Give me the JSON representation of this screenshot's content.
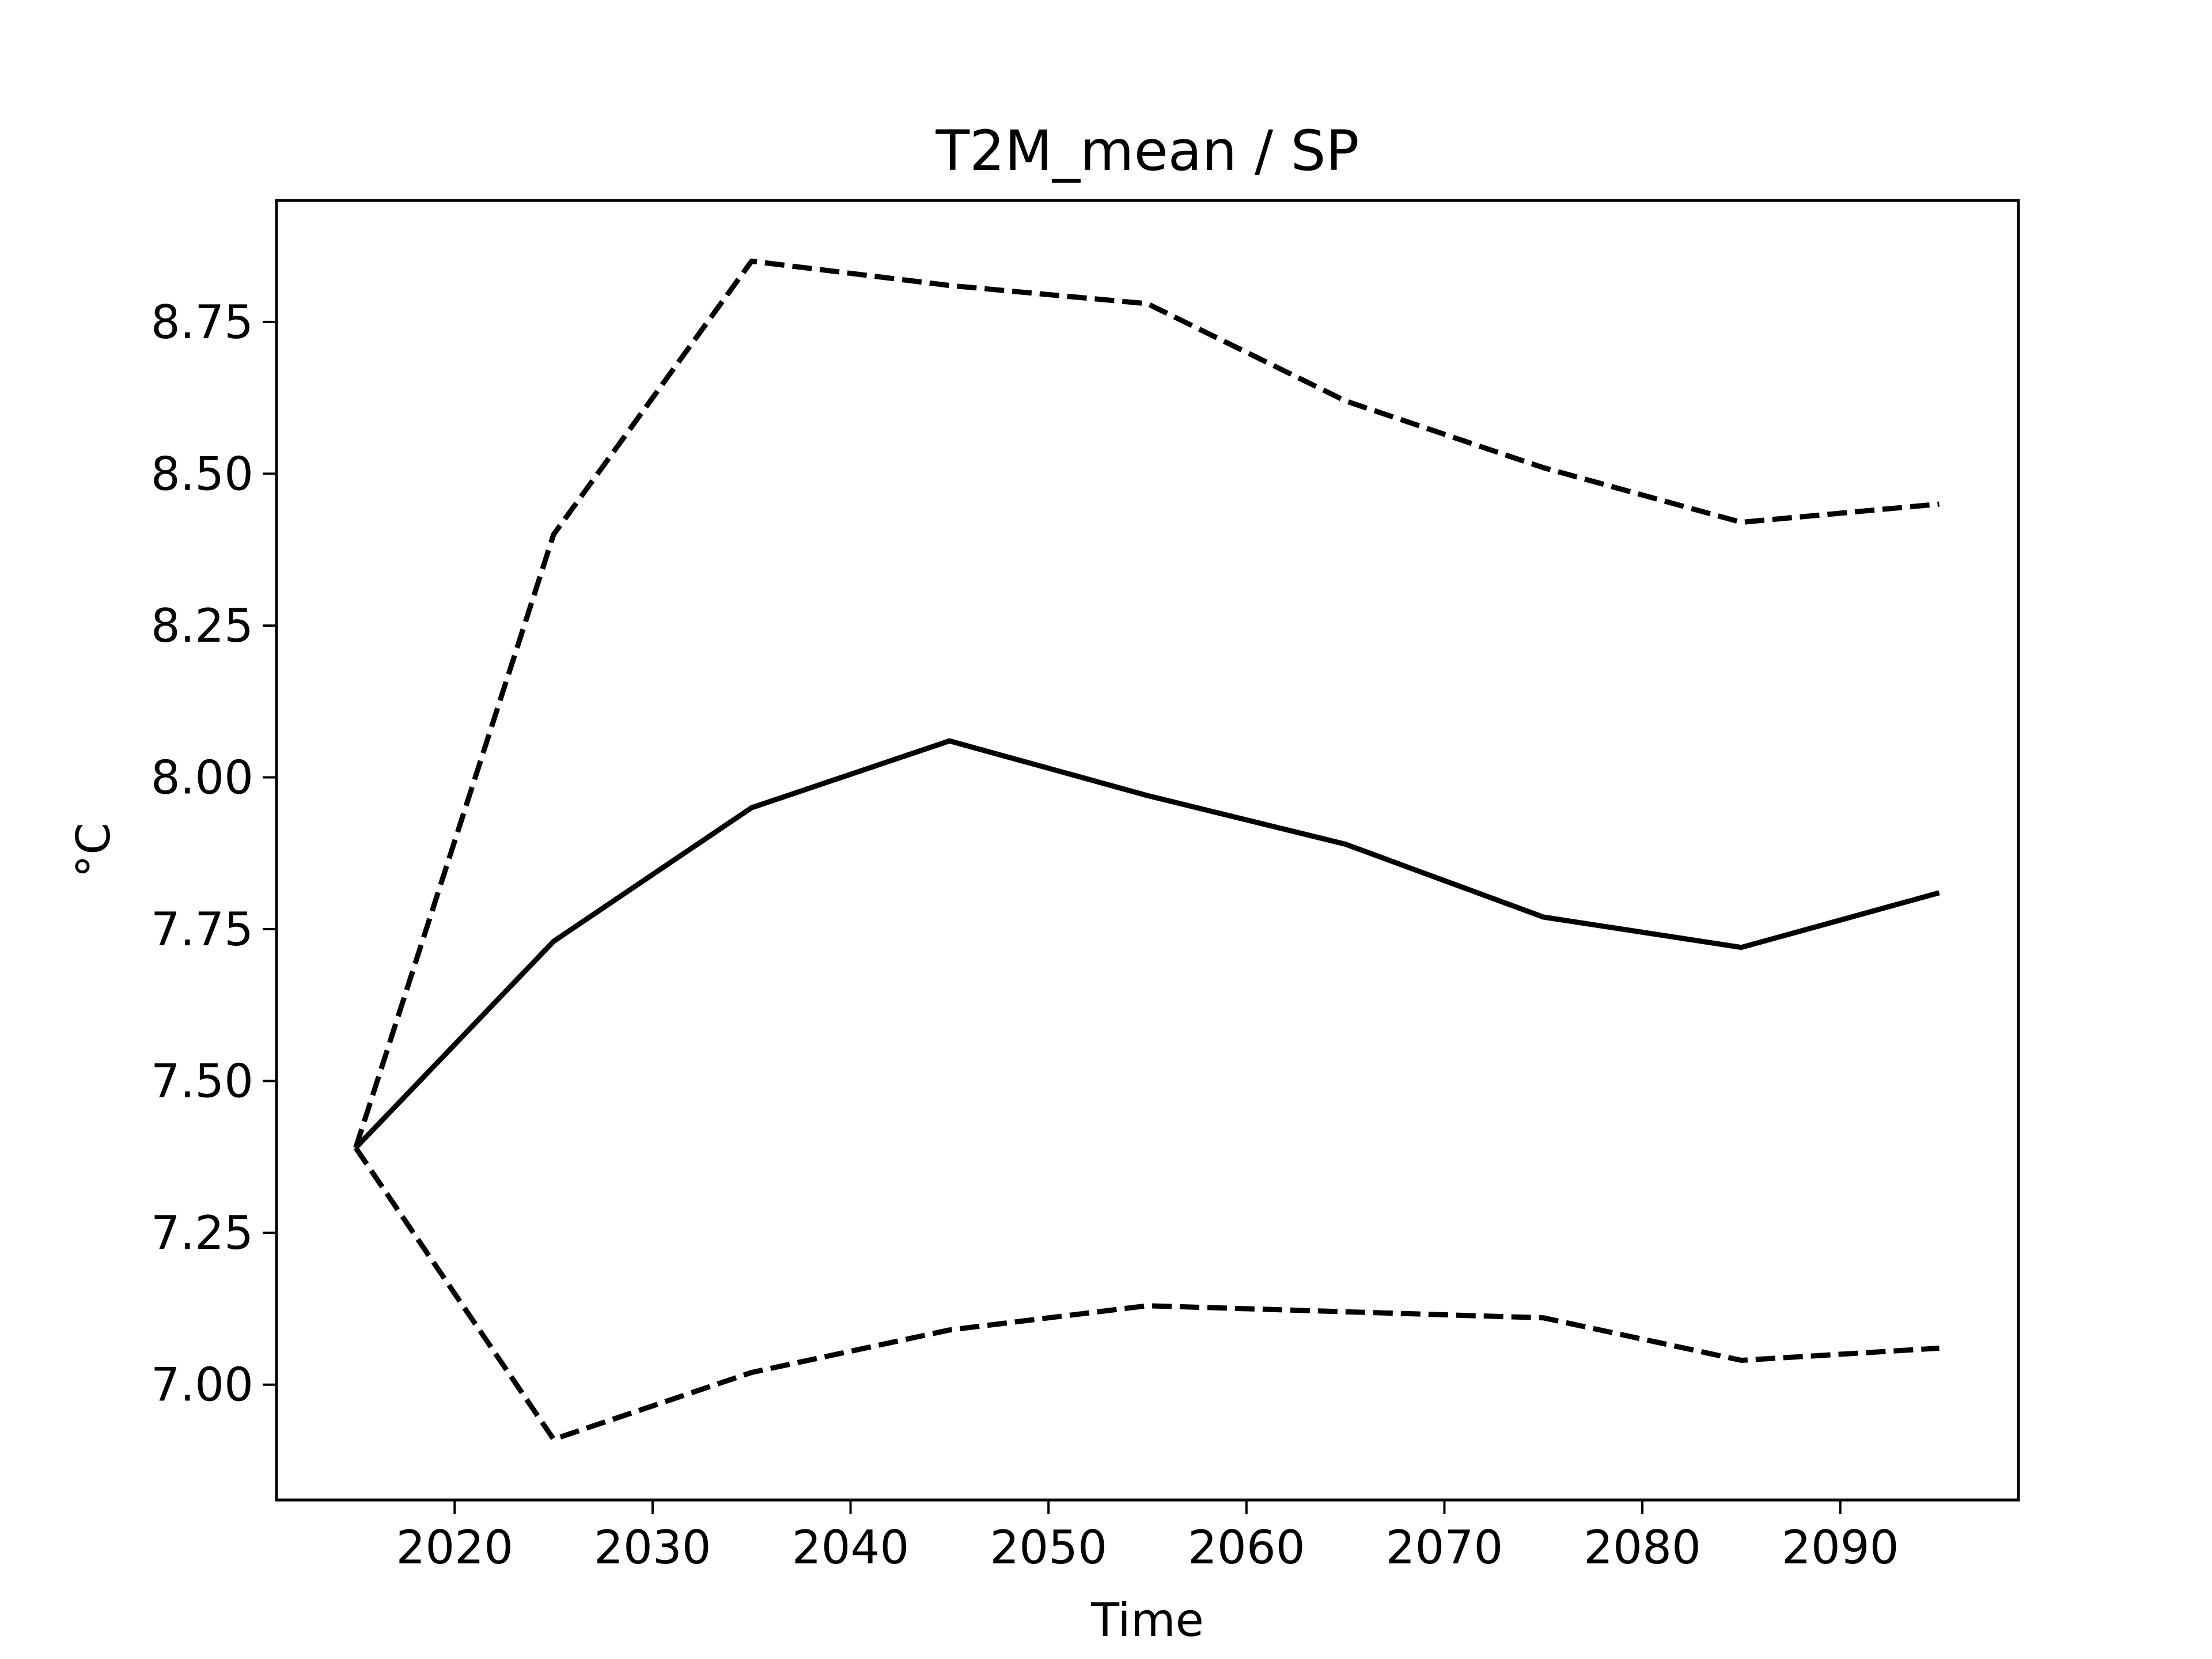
{
  "chart_data": {
    "type": "line",
    "title": "T2M_mean / SP",
    "xlabel": "Time",
    "ylabel": "°C",
    "x": [
      2015,
      2025,
      2035,
      2045,
      2055,
      2065,
      2075,
      2085,
      2095
    ],
    "xlim": [
      2011,
      2099
    ],
    "ylim": [
      6.81,
      8.95
    ],
    "xticks": [
      2020,
      2030,
      2040,
      2050,
      2060,
      2070,
      2080,
      2090
    ],
    "yticks": [
      7.0,
      7.25,
      7.5,
      7.75,
      8.0,
      8.25,
      8.5,
      8.75
    ],
    "ytick_labels": [
      "7.00",
      "7.25",
      "7.50",
      "7.75",
      "8.00",
      "8.25",
      "8.50",
      "8.75"
    ],
    "grid": false,
    "series": [
      {
        "style": "solid",
        "color": "#000000",
        "values": [
          7.39,
          7.73,
          7.95,
          8.06,
          7.97,
          7.89,
          7.77,
          7.72,
          7.81
        ]
      },
      {
        "style": "dashed",
        "color": "#000000",
        "values": [
          7.39,
          8.4,
          8.85,
          8.81,
          8.78,
          8.62,
          8.51,
          8.42,
          8.45
        ]
      },
      {
        "style": "dashed",
        "color": "#000000",
        "values": [
          7.39,
          6.91,
          7.02,
          7.09,
          7.13,
          7.12,
          7.11,
          7.04,
          7.06
        ]
      }
    ]
  }
}
